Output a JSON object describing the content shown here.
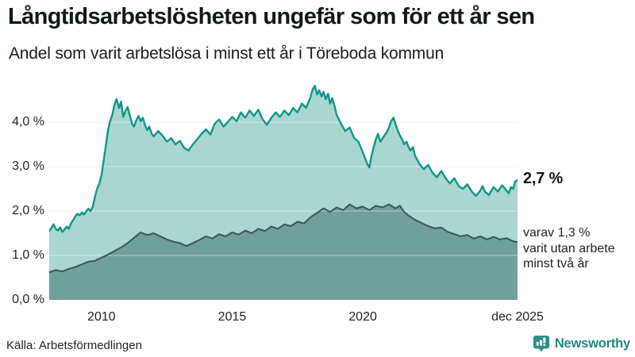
{
  "header": {
    "title": "Långtidsarbetslösheten ungefär som för ett år sen",
    "subtitle": "Andel som varit arbetslösa i minst ett år i Töreboda kommun"
  },
  "chart_data": {
    "type": "area",
    "title": "Långtidsarbetslösheten ungefär som för ett år sen",
    "subtitle": "Andel som varit arbetslösa i minst ett år i Töreboda kommun",
    "unit": "%",
    "x_range": [
      2008,
      2025.92
    ],
    "y_range": [
      0,
      5.142857
    ],
    "grid": true,
    "x_ticks": [
      {
        "t": 2010,
        "label": "2010"
      },
      {
        "t": 2015,
        "label": "2015"
      },
      {
        "t": 2020,
        "label": "2020"
      },
      {
        "t": 2025.92,
        "label": "dec 2025"
      }
    ],
    "y_ticks": [
      {
        "v": 0,
        "label": "0,0 %"
      },
      {
        "v": 1,
        "label": "1,0 %"
      },
      {
        "v": 2,
        "label": "2,0 %"
      },
      {
        "v": 3,
        "label": "3,0 %"
      },
      {
        "v": 4,
        "label": "4,0 %"
      }
    ],
    "series": [
      {
        "name": "Andel arbetslösa minst ett år",
        "latest_value": 2.7,
        "line_color": "#0f9689",
        "fill_color": "#a9d6cf",
        "points": [
          [
            2008.0,
            1.55
          ],
          [
            2008.08,
            1.62
          ],
          [
            2008.17,
            1.7
          ],
          [
            2008.25,
            1.6
          ],
          [
            2008.33,
            1.56
          ],
          [
            2008.42,
            1.63
          ],
          [
            2008.5,
            1.53
          ],
          [
            2008.58,
            1.58
          ],
          [
            2008.67,
            1.65
          ],
          [
            2008.75,
            1.6
          ],
          [
            2008.83,
            1.72
          ],
          [
            2008.92,
            1.8
          ],
          [
            2009.0,
            1.88
          ],
          [
            2009.08,
            1.94
          ],
          [
            2009.17,
            1.9
          ],
          [
            2009.25,
            1.97
          ],
          [
            2009.33,
            1.92
          ],
          [
            2009.42,
            2.0
          ],
          [
            2009.5,
            2.05
          ],
          [
            2009.58,
            2.0
          ],
          [
            2009.67,
            2.1
          ],
          [
            2009.75,
            2.32
          ],
          [
            2009.83,
            2.5
          ],
          [
            2009.92,
            2.62
          ],
          [
            2010.0,
            2.8
          ],
          [
            2010.08,
            3.12
          ],
          [
            2010.17,
            3.48
          ],
          [
            2010.25,
            3.82
          ],
          [
            2010.33,
            4.02
          ],
          [
            2010.42,
            4.18
          ],
          [
            2010.5,
            4.4
          ],
          [
            2010.58,
            4.52
          ],
          [
            2010.67,
            4.32
          ],
          [
            2010.75,
            4.46
          ],
          [
            2010.83,
            4.12
          ],
          [
            2010.92,
            4.25
          ],
          [
            2011.0,
            4.34
          ],
          [
            2011.08,
            4.16
          ],
          [
            2011.17,
            3.96
          ],
          [
            2011.25,
            3.9
          ],
          [
            2011.33,
            4.04
          ],
          [
            2011.42,
            4.14
          ],
          [
            2011.5,
            4.02
          ],
          [
            2011.58,
            4.1
          ],
          [
            2011.67,
            3.93
          ],
          [
            2011.75,
            3.82
          ],
          [
            2011.83,
            3.9
          ],
          [
            2011.92,
            3.74
          ],
          [
            2012.0,
            3.68
          ],
          [
            2012.17,
            3.8
          ],
          [
            2012.33,
            3.7
          ],
          [
            2012.5,
            3.56
          ],
          [
            2012.67,
            3.64
          ],
          [
            2012.83,
            3.5
          ],
          [
            2013.0,
            3.58
          ],
          [
            2013.17,
            3.42
          ],
          [
            2013.33,
            3.36
          ],
          [
            2013.5,
            3.5
          ],
          [
            2013.67,
            3.62
          ],
          [
            2013.83,
            3.74
          ],
          [
            2014.0,
            3.84
          ],
          [
            2014.17,
            3.72
          ],
          [
            2014.33,
            3.96
          ],
          [
            2014.5,
            4.06
          ],
          [
            2014.67,
            3.9
          ],
          [
            2014.83,
            4.0
          ],
          [
            2015.0,
            4.12
          ],
          [
            2015.17,
            4.02
          ],
          [
            2015.33,
            4.22
          ],
          [
            2015.5,
            4.1
          ],
          [
            2015.67,
            4.26
          ],
          [
            2015.83,
            4.14
          ],
          [
            2016.0,
            4.28
          ],
          [
            2016.17,
            4.06
          ],
          [
            2016.33,
            3.94
          ],
          [
            2016.5,
            4.1
          ],
          [
            2016.67,
            4.22
          ],
          [
            2016.83,
            4.12
          ],
          [
            2017.0,
            4.26
          ],
          [
            2017.17,
            4.16
          ],
          [
            2017.33,
            4.32
          ],
          [
            2017.5,
            4.22
          ],
          [
            2017.67,
            4.42
          ],
          [
            2017.83,
            4.32
          ],
          [
            2018.0,
            4.56
          ],
          [
            2018.08,
            4.74
          ],
          [
            2018.17,
            4.82
          ],
          [
            2018.25,
            4.62
          ],
          [
            2018.33,
            4.72
          ],
          [
            2018.42,
            4.58
          ],
          [
            2018.5,
            4.68
          ],
          [
            2018.58,
            4.52
          ],
          [
            2018.67,
            4.64
          ],
          [
            2018.75,
            4.42
          ],
          [
            2018.83,
            4.54
          ],
          [
            2018.92,
            4.36
          ],
          [
            2019.0,
            4.16
          ],
          [
            2019.17,
            3.96
          ],
          [
            2019.33,
            3.8
          ],
          [
            2019.5,
            3.88
          ],
          [
            2019.67,
            3.64
          ],
          [
            2019.83,
            3.56
          ],
          [
            2020.0,
            3.32
          ],
          [
            2020.17,
            3.06
          ],
          [
            2020.25,
            2.98
          ],
          [
            2020.33,
            3.24
          ],
          [
            2020.42,
            3.45
          ],
          [
            2020.5,
            3.62
          ],
          [
            2020.58,
            3.74
          ],
          [
            2020.67,
            3.56
          ],
          [
            2020.83,
            3.7
          ],
          [
            2020.92,
            3.78
          ],
          [
            2021.0,
            3.88
          ],
          [
            2021.08,
            4.02
          ],
          [
            2021.17,
            4.1
          ],
          [
            2021.25,
            3.96
          ],
          [
            2021.33,
            3.82
          ],
          [
            2021.42,
            3.7
          ],
          [
            2021.5,
            3.62
          ],
          [
            2021.58,
            3.5
          ],
          [
            2021.67,
            3.56
          ],
          [
            2021.75,
            3.44
          ],
          [
            2021.83,
            3.36
          ],
          [
            2021.92,
            3.44
          ],
          [
            2022.0,
            3.24
          ],
          [
            2022.17,
            3.06
          ],
          [
            2022.33,
            2.94
          ],
          [
            2022.5,
            3.04
          ],
          [
            2022.67,
            2.86
          ],
          [
            2022.83,
            2.76
          ],
          [
            2023.0,
            2.9
          ],
          [
            2023.17,
            2.74
          ],
          [
            2023.33,
            2.62
          ],
          [
            2023.5,
            2.74
          ],
          [
            2023.67,
            2.56
          ],
          [
            2023.83,
            2.5
          ],
          [
            2024.0,
            2.6
          ],
          [
            2024.17,
            2.44
          ],
          [
            2024.33,
            2.34
          ],
          [
            2024.5,
            2.46
          ],
          [
            2024.58,
            2.56
          ],
          [
            2024.67,
            2.44
          ],
          [
            2024.83,
            2.36
          ],
          [
            2025.0,
            2.54
          ],
          [
            2025.17,
            2.44
          ],
          [
            2025.33,
            2.58
          ],
          [
            2025.5,
            2.46
          ],
          [
            2025.58,
            2.4
          ],
          [
            2025.67,
            2.54
          ],
          [
            2025.75,
            2.5
          ],
          [
            2025.83,
            2.66
          ],
          [
            2025.92,
            2.7
          ]
        ]
      },
      {
        "name": "varav utan arbete minst två år",
        "latest_value": 1.3,
        "line_color": "#3a5651",
        "fill_color": "#6fa09a",
        "points": [
          [
            2008.0,
            0.62
          ],
          [
            2008.25,
            0.67
          ],
          [
            2008.5,
            0.64
          ],
          [
            2008.75,
            0.7
          ],
          [
            2009.0,
            0.74
          ],
          [
            2009.25,
            0.8
          ],
          [
            2009.5,
            0.86
          ],
          [
            2009.75,
            0.88
          ],
          [
            2010.0,
            0.95
          ],
          [
            2010.25,
            1.02
          ],
          [
            2010.5,
            1.1
          ],
          [
            2010.75,
            1.18
          ],
          [
            2011.0,
            1.28
          ],
          [
            2011.25,
            1.4
          ],
          [
            2011.5,
            1.52
          ],
          [
            2011.75,
            1.46
          ],
          [
            2012.0,
            1.5
          ],
          [
            2012.25,
            1.43
          ],
          [
            2012.5,
            1.36
          ],
          [
            2012.75,
            1.31
          ],
          [
            2013.0,
            1.28
          ],
          [
            2013.25,
            1.21
          ],
          [
            2013.5,
            1.28
          ],
          [
            2013.75,
            1.35
          ],
          [
            2014.0,
            1.43
          ],
          [
            2014.25,
            1.38
          ],
          [
            2014.5,
            1.48
          ],
          [
            2014.75,
            1.43
          ],
          [
            2015.0,
            1.52
          ],
          [
            2015.25,
            1.47
          ],
          [
            2015.5,
            1.56
          ],
          [
            2015.75,
            1.5
          ],
          [
            2016.0,
            1.6
          ],
          [
            2016.25,
            1.55
          ],
          [
            2016.5,
            1.65
          ],
          [
            2016.75,
            1.6
          ],
          [
            2017.0,
            1.7
          ],
          [
            2017.25,
            1.66
          ],
          [
            2017.5,
            1.76
          ],
          [
            2017.75,
            1.72
          ],
          [
            2018.0,
            1.86
          ],
          [
            2018.25,
            1.96
          ],
          [
            2018.5,
            2.06
          ],
          [
            2018.75,
            1.98
          ],
          [
            2019.0,
            2.08
          ],
          [
            2019.25,
            2.02
          ],
          [
            2019.5,
            2.15
          ],
          [
            2019.75,
            2.06
          ],
          [
            2020.0,
            2.1
          ],
          [
            2020.25,
            2.02
          ],
          [
            2020.5,
            2.12
          ],
          [
            2020.75,
            2.08
          ],
          [
            2021.0,
            2.15
          ],
          [
            2021.25,
            2.06
          ],
          [
            2021.42,
            2.12
          ],
          [
            2021.58,
            1.98
          ],
          [
            2021.75,
            1.9
          ],
          [
            2022.0,
            1.8
          ],
          [
            2022.25,
            1.73
          ],
          [
            2022.5,
            1.66
          ],
          [
            2022.75,
            1.61
          ],
          [
            2023.0,
            1.63
          ],
          [
            2023.25,
            1.53
          ],
          [
            2023.5,
            1.48
          ],
          [
            2023.75,
            1.43
          ],
          [
            2024.0,
            1.46
          ],
          [
            2024.25,
            1.38
          ],
          [
            2024.5,
            1.43
          ],
          [
            2024.75,
            1.36
          ],
          [
            2025.0,
            1.42
          ],
          [
            2025.25,
            1.36
          ],
          [
            2025.5,
            1.39
          ],
          [
            2025.75,
            1.32
          ],
          [
            2025.92,
            1.3
          ]
        ]
      }
    ],
    "annotations": {
      "latest": "2,7 %",
      "note_lines": [
        "varav 1,3 %",
        "varit utan arbete",
        "minst två år"
      ]
    }
  },
  "footer": {
    "source": "Källa: Arbetsförmedlingen",
    "brand": "Newsworthy"
  },
  "colors": {
    "grid": "#dfe3e2",
    "text": "#1c2423",
    "brand_teal": "#20897e"
  }
}
